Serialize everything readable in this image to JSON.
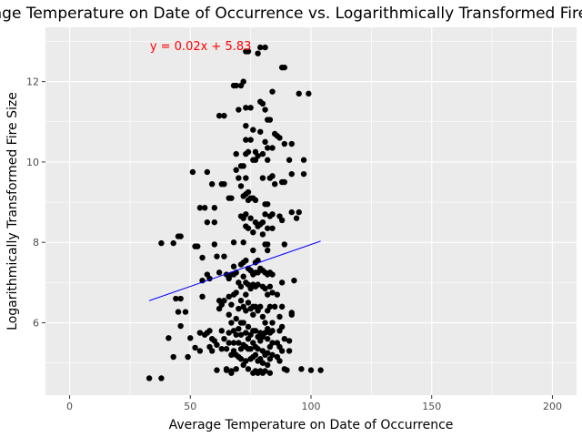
{
  "chart_data": {
    "type": "scatter",
    "title": "Average Temperature on Date of Occurrence vs. Logarithmically Transformed Fire Size",
    "xlabel": "Average Temperature on Date of Occurrence",
    "ylabel": "Logarithmically Transformed Fire Size",
    "xlim": [
      -10,
      210
    ],
    "ylim": [
      4.2,
      13.35
    ],
    "xticks": [
      0,
      50,
      100,
      150,
      200
    ],
    "yticks": [
      6,
      8,
      10,
      12
    ],
    "grid": true,
    "legend": "none",
    "colors": {
      "panel": "#ebebeb",
      "grid_major": "#ffffff",
      "point": "#000000",
      "fit_line": "#0000ff",
      "annotation": "#ff0000"
    },
    "annotation": {
      "text": "y = 0.02x + 5.83",
      "x": 49,
      "y": 12.9
    },
    "fit_line": {
      "x": [
        33,
        104
      ],
      "y": [
        6.55,
        8.03
      ]
    },
    "points": [
      [
        33,
        4.62
      ],
      [
        38,
        4.62
      ],
      [
        38,
        7.98
      ],
      [
        41,
        5.62
      ],
      [
        43,
        5.15
      ],
      [
        43,
        7.98
      ],
      [
        44,
        6.6
      ],
      [
        45,
        6.27
      ],
      [
        45,
        8.15
      ],
      [
        46,
        8.15
      ],
      [
        46,
        5.92
      ],
      [
        46,
        6.6
      ],
      [
        48,
        6.27
      ],
      [
        49,
        5.15
      ],
      [
        50,
        5.62
      ],
      [
        51,
        9.75
      ],
      [
        52,
        5.38
      ],
      [
        52,
        7.9
      ],
      [
        53,
        7.9
      ],
      [
        54,
        8.86
      ],
      [
        54,
        5.75
      ],
      [
        54,
        5.3
      ],
      [
        55,
        7.62
      ],
      [
        55,
        6.65
      ],
      [
        55,
        7.05
      ],
      [
        56,
        8.86
      ],
      [
        56,
        5.7
      ],
      [
        57,
        9.75
      ],
      [
        57,
        8.5
      ],
      [
        57,
        7.2
      ],
      [
        57,
        5.75
      ],
      [
        58,
        5.4
      ],
      [
        58,
        5.8
      ],
      [
        58,
        7.1
      ],
      [
        59,
        5.3
      ],
      [
        59,
        5.6
      ],
      [
        59,
        9.45
      ],
      [
        60,
        7.95
      ],
      [
        60,
        8.5
      ],
      [
        60,
        8.86
      ],
      [
        60,
        5.55
      ],
      [
        61,
        7.65
      ],
      [
        61,
        5.45
      ],
      [
        61,
        4.82
      ],
      [
        62,
        11.15
      ],
      [
        62,
        7.25
      ],
      [
        62,
        6.55
      ],
      [
        62,
        6.35
      ],
      [
        63,
        9.45
      ],
      [
        63,
        5.35
      ],
      [
        63,
        5.8
      ],
      [
        63,
        6.45
      ],
      [
        64,
        11.15
      ],
      [
        64,
        9.45
      ],
      [
        64,
        7.65
      ],
      [
        64,
        6.55
      ],
      [
        64,
        5.6
      ],
      [
        65,
        7.2
      ],
      [
        65,
        5.35
      ],
      [
        65,
        4.85
      ],
      [
        65,
        4.82
      ],
      [
        66,
        7.1
      ],
      [
        66,
        6.65
      ],
      [
        66,
        6.2
      ],
      [
        66,
        5.75
      ],
      [
        66,
        5.5
      ],
      [
        66,
        9.1
      ],
      [
        67,
        9.1
      ],
      [
        67,
        7.2
      ],
      [
        67,
        6.45
      ],
      [
        67,
        6.0
      ],
      [
        67,
        5.2
      ],
      [
        67,
        4.8
      ],
      [
        67,
        4.75
      ],
      [
        68,
        11.9
      ],
      [
        68,
        8.0
      ],
      [
        68,
        7.4
      ],
      [
        68,
        7.2
      ],
      [
        68,
        6.7
      ],
      [
        68,
        5.8
      ],
      [
        68,
        5.5
      ],
      [
        68,
        5.3
      ],
      [
        69,
        11.9
      ],
      [
        69,
        10.2
      ],
      [
        69,
        9.8
      ],
      [
        69,
        7.25
      ],
      [
        69,
        6.75
      ],
      [
        69,
        6.1
      ],
      [
        69,
        5.7
      ],
      [
        69,
        5.2
      ],
      [
        69,
        4.85
      ],
      [
        70,
        11.3
      ],
      [
        70,
        9.6
      ],
      [
        70,
        7.0
      ],
      [
        70,
        6.35
      ],
      [
        70,
        5.85
      ],
      [
        70,
        5.5
      ],
      [
        70,
        5.15
      ],
      [
        71,
        11.9
      ],
      [
        71,
        9.9
      ],
      [
        71,
        9.4
      ],
      [
        71,
        8.65
      ],
      [
        71,
        7.45
      ],
      [
        71,
        6.9
      ],
      [
        71,
        6.55
      ],
      [
        71,
        6.0
      ],
      [
        71,
        5.7
      ],
      [
        71,
        5.35
      ],
      [
        71,
        5.1
      ],
      [
        72,
        12.0
      ],
      [
        72,
        9.9
      ],
      [
        72,
        9.15
      ],
      [
        72,
        8.6
      ],
      [
        72,
        8.0
      ],
      [
        72,
        7.5
      ],
      [
        72,
        7.15
      ],
      [
        72,
        6.4
      ],
      [
        72,
        6.0
      ],
      [
        72,
        5.45
      ],
      [
        72,
        4.95
      ],
      [
        73,
        12.75
      ],
      [
        73,
        11.35
      ],
      [
        73,
        10.9
      ],
      [
        73,
        10.55
      ],
      [
        73,
        10.2
      ],
      [
        73,
        9.6
      ],
      [
        73,
        9.2
      ],
      [
        73,
        8.7
      ],
      [
        73,
        8.4
      ],
      [
        73,
        7.55
      ],
      [
        73,
        7.0
      ],
      [
        73,
        6.7
      ],
      [
        73,
        6.3
      ],
      [
        73,
        5.75
      ],
      [
        73,
        5.4
      ],
      [
        73,
        5.05
      ],
      [
        74,
        12.75
      ],
      [
        74,
        10.25
      ],
      [
        74,
        9.25
      ],
      [
        74,
        9.05
      ],
      [
        74,
        8.35
      ],
      [
        74,
        7.35
      ],
      [
        74,
        6.95
      ],
      [
        74,
        6.5
      ],
      [
        74,
        5.9
      ],
      [
        74,
        5.6
      ],
      [
        74,
        5.35
      ],
      [
        74,
        4.85
      ],
      [
        75,
        11.35
      ],
      [
        75,
        10.55
      ],
      [
        75,
        9.1
      ],
      [
        75,
        8.6
      ],
      [
        75,
        7.3
      ],
      [
        75,
        6.85
      ],
      [
        75,
        6.35
      ],
      [
        75,
        5.7
      ],
      [
        75,
        5.35
      ],
      [
        75,
        5.1
      ],
      [
        76,
        10.8
      ],
      [
        76,
        10.05
      ],
      [
        76,
        9.1
      ],
      [
        76,
        8.25
      ],
      [
        76,
        7.8
      ],
      [
        76,
        7.2
      ],
      [
        76,
        6.95
      ],
      [
        76,
        6.4
      ],
      [
        76,
        6.2
      ],
      [
        76,
        5.8
      ],
      [
        76,
        5.5
      ],
      [
        76,
        5.15
      ],
      [
        76,
        4.75
      ],
      [
        77,
        10.25
      ],
      [
        77,
        10.05
      ],
      [
        77,
        9.05
      ],
      [
        77,
        8.5
      ],
      [
        77,
        7.5
      ],
      [
        77,
        7.25
      ],
      [
        77,
        6.9
      ],
      [
        77,
        6.4
      ],
      [
        77,
        5.8
      ],
      [
        77,
        5.4
      ],
      [
        77,
        5.2
      ],
      [
        77,
        4.8
      ],
      [
        78,
        12.7
      ],
      [
        78,
        10.15
      ],
      [
        78,
        8.4
      ],
      [
        78,
        7.55
      ],
      [
        78,
        7.25
      ],
      [
        78,
        6.95
      ],
      [
        78,
        6.3
      ],
      [
        78,
        5.65
      ],
      [
        78,
        5.35
      ],
      [
        78,
        5.05
      ],
      [
        78,
        4.75
      ],
      [
        79,
        12.85
      ],
      [
        79,
        11.5
      ],
      [
        79,
        10.75
      ],
      [
        79,
        8.45
      ],
      [
        79,
        7.35
      ],
      [
        79,
        6.4
      ],
      [
        79,
        5.75
      ],
      [
        79,
        5.55
      ],
      [
        79,
        5.1
      ],
      [
        79,
        4.8
      ],
      [
        80,
        11.45
      ],
      [
        80,
        10.2
      ],
      [
        80,
        9.6
      ],
      [
        80,
        8.5
      ],
      [
        80,
        8.2
      ],
      [
        80,
        7.3
      ],
      [
        80,
        6.9
      ],
      [
        80,
        6.15
      ],
      [
        80,
        5.65
      ],
      [
        80,
        5.3
      ],
      [
        80,
        5.0
      ],
      [
        80,
        4.75
      ],
      [
        81,
        12.85
      ],
      [
        81,
        11.3
      ],
      [
        81,
        10.5
      ],
      [
        81,
        8.95
      ],
      [
        81,
        8.7
      ],
      [
        81,
        7.95
      ],
      [
        81,
        7.25
      ],
      [
        81,
        6.85
      ],
      [
        81,
        6.0
      ],
      [
        81,
        5.75
      ],
      [
        81,
        5.2
      ],
      [
        81,
        4.8
      ],
      [
        82,
        11.05
      ],
      [
        82,
        10.35
      ],
      [
        82,
        10.05
      ],
      [
        82,
        8.95
      ],
      [
        82,
        8.35
      ],
      [
        82,
        7.95
      ],
      [
        82,
        7.8
      ],
      [
        82,
        7.2
      ],
      [
        82,
        6.7
      ],
      [
        82,
        6.3
      ],
      [
        82,
        5.85
      ],
      [
        82,
        5.6
      ],
      [
        82,
        5.25
      ],
      [
        82,
        4.95
      ],
      [
        83,
        11.05
      ],
      [
        83,
        9.6
      ],
      [
        83,
        8.65
      ],
      [
        83,
        7.25
      ],
      [
        83,
        6.9
      ],
      [
        83,
        6.4
      ],
      [
        83,
        5.75
      ],
      [
        83,
        5.4
      ],
      [
        83,
        5.1
      ],
      [
        83,
        4.75
      ],
      [
        84,
        11.75
      ],
      [
        84,
        10.35
      ],
      [
        84,
        9.65
      ],
      [
        84,
        8.7
      ],
      [
        84,
        8.35
      ],
      [
        84,
        7.2
      ],
      [
        84,
        6.75
      ],
      [
        84,
        6.0
      ],
      [
        84,
        5.8
      ],
      [
        84,
        5.5
      ],
      [
        84,
        5.2
      ],
      [
        85,
        10.7
      ],
      [
        85,
        9.45
      ],
      [
        85,
        6.4
      ],
      [
        86,
        10.65
      ],
      [
        86,
        6.7
      ],
      [
        86,
        5.5
      ],
      [
        86,
        5.15
      ],
      [
        87,
        10.6
      ],
      [
        87,
        8.65
      ],
      [
        87,
        6.15
      ],
      [
        87,
        5.8
      ],
      [
        87,
        5.4
      ],
      [
        87,
        5.05
      ],
      [
        88,
        12.35
      ],
      [
        88,
        9.5
      ],
      [
        88,
        8.55
      ],
      [
        88,
        7.0
      ],
      [
        88,
        6.4
      ],
      [
        88,
        5.9
      ],
      [
        88,
        5.3
      ],
      [
        89,
        12.35
      ],
      [
        89,
        10.45
      ],
      [
        89,
        9.5
      ],
      [
        89,
        7.95
      ],
      [
        89,
        5.6
      ],
      [
        89,
        4.85
      ],
      [
        90,
        4.82
      ],
      [
        91,
        10.05
      ],
      [
        91,
        5.3
      ],
      [
        91,
        5.55
      ],
      [
        92,
        10.45
      ],
      [
        92,
        9.7
      ],
      [
        92,
        8.75
      ],
      [
        92,
        6.25
      ],
      [
        92,
        6.2
      ],
      [
        93,
        7.05
      ],
      [
        94,
        8.6
      ],
      [
        95,
        8.75
      ],
      [
        95,
        11.7
      ],
      [
        96,
        4.85
      ],
      [
        97,
        9.7
      ],
      [
        97,
        10.05
      ],
      [
        99,
        11.7
      ],
      [
        100,
        4.82
      ],
      [
        104,
        4.82
      ]
    ]
  }
}
